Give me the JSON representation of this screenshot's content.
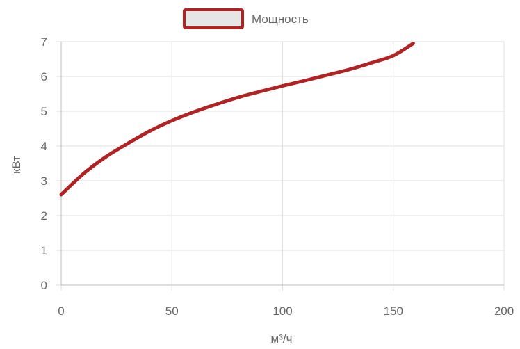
{
  "chart_data": {
    "type": "line",
    "legend": {
      "position": "top"
    },
    "xlabel": "м³/ч",
    "ylabel": "кВт",
    "xlim": [
      0,
      200
    ],
    "ylim": [
      0,
      7
    ],
    "x_ticks": [
      0,
      50,
      100,
      150,
      200
    ],
    "y_ticks": [
      0,
      1,
      2,
      3,
      4,
      5,
      6,
      7
    ],
    "grid": true,
    "series": [
      {
        "name": "Мощность",
        "color": "#b22222",
        "fill": "#e6e6e6",
        "x": [
          0,
          10,
          20,
          30,
          40,
          50,
          60,
          70,
          80,
          90,
          100,
          110,
          120,
          130,
          140,
          150,
          159
        ],
        "y": [
          2.6,
          3.2,
          3.68,
          4.07,
          4.43,
          4.73,
          4.98,
          5.2,
          5.4,
          5.57,
          5.73,
          5.88,
          6.04,
          6.2,
          6.39,
          6.6,
          6.95
        ]
      }
    ]
  }
}
